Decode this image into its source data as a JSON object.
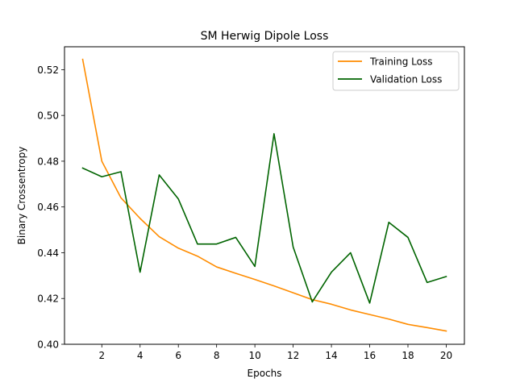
{
  "chart_data": {
    "type": "line",
    "title": "SM Herwig Dipole Loss",
    "xlabel": "Epochs",
    "ylabel": "Binary Crossentropy",
    "xlim": [
      0.05,
      20.95
    ],
    "ylim": [
      0.4,
      0.53
    ],
    "xticks": [
      2,
      4,
      6,
      8,
      10,
      12,
      14,
      16,
      18,
      20
    ],
    "xtick_labels": [
      "2",
      "4",
      "6",
      "8",
      "10",
      "12",
      "14",
      "16",
      "18",
      "20"
    ],
    "yticks": [
      0.4,
      0.42,
      0.44,
      0.46,
      0.48,
      0.5,
      0.52
    ],
    "ytick_labels": [
      "0.40",
      "0.42",
      "0.44",
      "0.46",
      "0.48",
      "0.50",
      "0.52"
    ],
    "grid": false,
    "legend_position": "top-right",
    "x": [
      1,
      2,
      3,
      4,
      5,
      6,
      7,
      8,
      9,
      10,
      11,
      12,
      13,
      14,
      15,
      16,
      17,
      18,
      19,
      20
    ],
    "series": [
      {
        "name": "Training Loss",
        "color": "#ff8c00",
        "values": [
          0.5245,
          0.48,
          0.464,
          0.455,
          0.447,
          0.442,
          0.4385,
          0.4338,
          0.431,
          0.4283,
          0.4255,
          0.4225,
          0.4195,
          0.4175,
          0.415,
          0.413,
          0.411,
          0.4087,
          0.4073,
          0.4058
        ]
      },
      {
        "name": "Validation Loss",
        "color": "#006400",
        "values": [
          0.477,
          0.4732,
          0.4754,
          0.4315,
          0.474,
          0.4635,
          0.4438,
          0.4438,
          0.4467,
          0.434,
          0.492,
          0.4425,
          0.4185,
          0.4315,
          0.44,
          0.418,
          0.4533,
          0.4467,
          0.427,
          0.4296
        ]
      }
    ]
  }
}
